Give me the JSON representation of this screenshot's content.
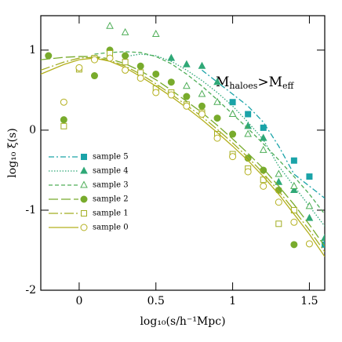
{
  "chart_data": {
    "type": "line",
    "xlabel": "log₁₀(s/h⁻¹Mpc)",
    "ylabel": "log₁₀ ξ(s)",
    "annotation": [
      "M",
      "haloes",
      ">M",
      "eff"
    ],
    "xlim": [
      -0.25,
      1.6
    ],
    "ylim": [
      -2,
      1.43
    ],
    "xticks": [
      0,
      0.5,
      1,
      1.5
    ],
    "yticks": [
      -2,
      -1,
      0,
      1
    ],
    "model_x": [
      -0.25,
      -0.1,
      0,
      0.1,
      0.2,
      0.3,
      0.4,
      0.5,
      0.6,
      0.7,
      0.8,
      0.9,
      1.0,
      1.1,
      1.2,
      1.3,
      1.4,
      1.5,
      1.6
    ],
    "series": [
      {
        "name": "sample 5",
        "color": "#1aa3a8",
        "marker": "square",
        "filled": true,
        "dash": "7 3 2 3",
        "x": [
          1.0,
          1.1,
          1.2,
          1.4,
          1.5,
          1.6
        ],
        "values": [
          0.35,
          0.2,
          0.03,
          -0.38,
          -0.58,
          -1.43
        ],
        "model": [
          null,
          null,
          null,
          null,
          null,
          null,
          null,
          null,
          null,
          null,
          0.75,
          0.6,
          0.45,
          0.3,
          0.1,
          -0.2,
          -0.55,
          -0.7,
          -0.85
        ]
      },
      {
        "name": "sample 4",
        "color": "#2fa877",
        "marker": "triangle",
        "filled": true,
        "dash": "1.5 2",
        "x": [
          0.6,
          0.7,
          0.8,
          0.9,
          1.0,
          1.1,
          1.2,
          1.3,
          1.4,
          1.5,
          1.6
        ],
        "values": [
          0.9,
          0.82,
          0.8,
          0.6,
          0.2,
          0.05,
          -0.1,
          -0.65,
          -0.75,
          -1.1,
          -1.35
        ],
        "model": [
          null,
          null,
          null,
          null,
          null,
          0.92,
          0.95,
          0.93,
          0.86,
          0.75,
          0.62,
          0.47,
          0.3,
          0.1,
          -0.12,
          -0.45,
          -0.7,
          -0.95,
          -1.2
        ]
      },
      {
        "name": "sample 3",
        "color": "#4fae58",
        "marker": "triangle",
        "filled": false,
        "dash": "5 3",
        "x": [
          0.2,
          0.3,
          0.5,
          0.7,
          0.8,
          0.9,
          1.0,
          1.1,
          1.2,
          1.3,
          1.4,
          1.5
        ],
        "values": [
          1.3,
          1.22,
          1.2,
          0.55,
          0.45,
          0.35,
          0.2,
          -0.05,
          -0.25,
          -0.55,
          -0.7,
          -0.95
        ],
        "model": [
          null,
          null,
          null,
          0.95,
          0.97,
          0.98,
          0.97,
          0.92,
          0.83,
          0.7,
          0.55,
          0.38,
          0.2,
          0.02,
          -0.17,
          -0.37,
          -0.58,
          -0.8,
          -1.05
        ]
      },
      {
        "name": "sample 2",
        "color": "#78ab2c",
        "marker": "circle",
        "filled": true,
        "dash": "12 4",
        "x": [
          -0.2,
          -0.1,
          0.1,
          0.2,
          0.3,
          0.4,
          0.5,
          0.6,
          0.7,
          0.8,
          0.9,
          1.0,
          1.1,
          1.2,
          1.3,
          1.4
        ],
        "values": [
          0.93,
          0.13,
          0.68,
          1.0,
          0.93,
          0.8,
          0.7,
          0.6,
          0.42,
          0.3,
          0.15,
          -0.05,
          -0.35,
          -0.5,
          -0.75,
          -1.43
        ],
        "model": [
          0.88,
          0.91,
          0.92,
          0.92,
          0.89,
          0.83,
          0.74,
          0.63,
          0.5,
          0.36,
          0.22,
          0.06,
          -0.11,
          -0.29,
          -0.48,
          -0.7,
          -0.93,
          -1.18,
          -1.45
        ]
      },
      {
        "name": "sample 1",
        "color": "#a2ae22",
        "marker": "square",
        "filled": false,
        "dash": "12 3 2 3",
        "x": [
          -0.1,
          0.0,
          0.1,
          0.2,
          0.3,
          0.4,
          0.5,
          0.6,
          0.7,
          0.8,
          0.9,
          1.0,
          1.1,
          1.2,
          1.3,
          1.4
        ],
        "values": [
          0.05,
          0.76,
          0.9,
          0.96,
          0.85,
          0.72,
          0.52,
          0.47,
          0.32,
          0.22,
          -0.05,
          -0.3,
          -0.48,
          -0.62,
          -1.17,
          -1.0
        ],
        "model": [
          0.75,
          0.85,
          0.9,
          0.91,
          0.87,
          0.8,
          0.7,
          0.58,
          0.45,
          0.31,
          0.17,
          0.01,
          -0.16,
          -0.34,
          -0.54,
          -0.76,
          -1.0,
          -1.25,
          -1.52
        ]
      },
      {
        "name": "sample 0",
        "color": "#b4b01e",
        "marker": "circle",
        "filled": false,
        "dash": "",
        "x": [
          -0.1,
          0.0,
          0.1,
          0.2,
          0.3,
          0.4,
          0.5,
          0.6,
          0.7,
          0.8,
          0.9,
          1.0,
          1.1,
          1.2,
          1.3,
          1.4,
          1.5
        ],
        "values": [
          0.35,
          0.78,
          0.88,
          0.9,
          0.75,
          0.65,
          0.47,
          0.44,
          0.3,
          0.2,
          -0.1,
          -0.33,
          -0.52,
          -0.7,
          -0.9,
          -1.15,
          -1.42
        ],
        "model": [
          0.7,
          0.82,
          0.88,
          0.9,
          0.86,
          0.78,
          0.67,
          0.55,
          0.42,
          0.28,
          0.13,
          -0.03,
          -0.2,
          -0.38,
          -0.58,
          -0.8,
          -1.05,
          -1.3,
          -1.58
        ]
      }
    ]
  }
}
